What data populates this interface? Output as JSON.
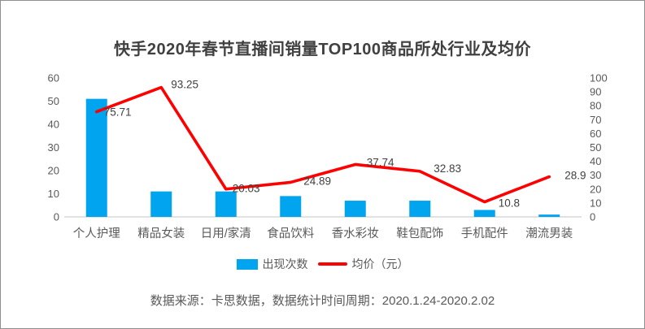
{
  "chart": {
    "title": "快手2020年春节直播间销量TOP100商品所处行业及均价",
    "footer": "数据来源：卡思数据，数据统计时间周期：2020.1.24-2020.2.02"
  },
  "legend": [
    {
      "label": "出现次数",
      "type": "bar",
      "color": "#00A4EF"
    },
    {
      "label": "均价（元）",
      "type": "line",
      "color": "#FF0000"
    }
  ],
  "colors": {
    "bar": "#00A4EF",
    "line": "#FF0000",
    "axis_line": "#d9d9d9",
    "tick_text": "#595959",
    "data_label_text": "#404040",
    "title_text": "#404040",
    "frame_border": "#8f8f8f"
  },
  "chart_data": {
    "type": "combo-bar-line",
    "title": "快手2020年春节直播间销量TOP100商品所处行业及均价",
    "categories": [
      "个人护理",
      "精品女装",
      "日用/家清",
      "食品饮料",
      "香水彩妆",
      "鞋包配饰",
      "手机配件",
      "潮流男装"
    ],
    "series": [
      {
        "name": "出现次数",
        "type": "bar",
        "axis": "left",
        "color": "#00A4EF",
        "values": [
          51,
          11,
          11,
          9,
          7,
          7,
          3,
          1
        ]
      },
      {
        "name": "均价（元）",
        "type": "line",
        "axis": "right",
        "color": "#FF0000",
        "values": [
          75.71,
          93.25,
          20.03,
          24.89,
          37.74,
          32.83,
          10.8,
          28.9
        ],
        "point_labels": [
          "75.71",
          "93.25",
          "20.03",
          "24.89",
          "37.74",
          "32.83",
          "10.8",
          "28.9"
        ]
      }
    ],
    "y_axis_left": {
      "min": 0,
      "max": 60,
      "step": 10,
      "tick_labels": [
        "0",
        "10",
        "20",
        "30",
        "40",
        "50",
        "60"
      ]
    },
    "y_axis_right": {
      "min": 0,
      "max": 100,
      "step": 10,
      "tick_labels": [
        "0",
        "10",
        "20",
        "30",
        "40",
        "50",
        "60",
        "70",
        "80",
        "90",
        "100"
      ]
    },
    "grid": false,
    "legend_position": "bottom",
    "source_note": "数据来源：卡思数据，数据统计时间周期：2020.1.24-2020.2.02"
  }
}
